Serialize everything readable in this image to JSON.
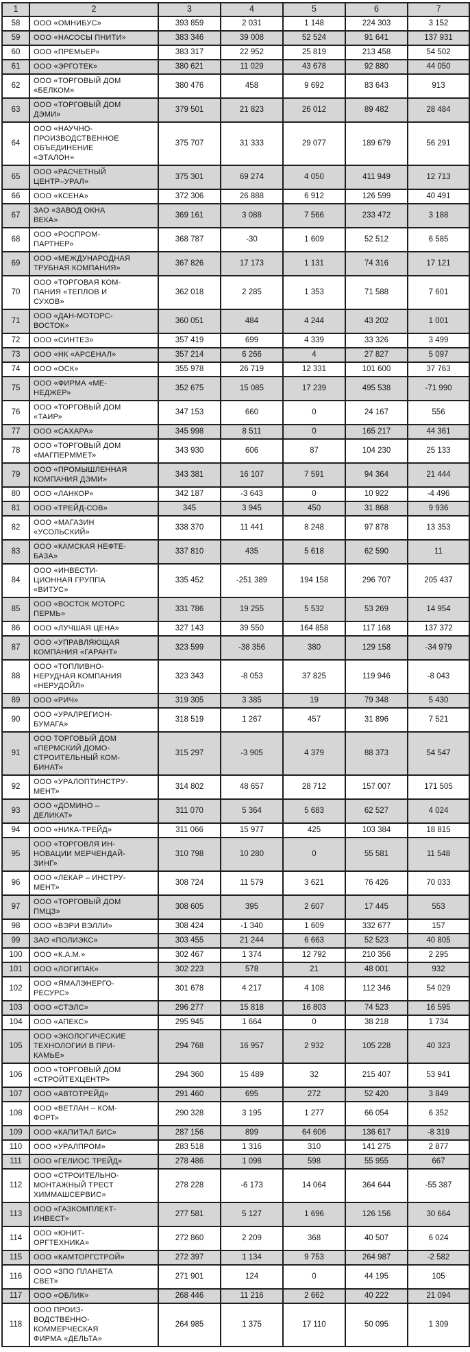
{
  "colors": {
    "row_shade": "#d6d6d6",
    "border": "#1e1e1e",
    "page_background": "#ffffff"
  },
  "table": {
    "columns": [
      "1",
      "2",
      "3",
      "4",
      "5",
      "6",
      "7"
    ],
    "rows": [
      {
        "num": "58",
        "name": "ООО «ОМНИБУС»",
        "values": [
          "393 859",
          "2 031",
          "1 148",
          "224 303",
          "3 152"
        ]
      },
      {
        "num": "59",
        "name": "ООО «НАСОСЫ ПНИТИ»",
        "values": [
          "383 346",
          "39 008",
          "52 524",
          "91 641",
          "137 931"
        ]
      },
      {
        "num": "60",
        "name": "ООО «ПРЕМЬЕР»",
        "values": [
          "383 317",
          "22 952",
          "25 819",
          "213 458",
          "54 502"
        ]
      },
      {
        "num": "61",
        "name": "ООО «ЭРГОТЕК»",
        "values": [
          "380 621",
          "11 029",
          "43 678",
          "92 880",
          "44 050"
        ]
      },
      {
        "num": "62",
        "name": "ООО «ТОРГОВЫЙ ДОМ\n«БЕЛКОМ»",
        "values": [
          "380 476",
          "458",
          "9 692",
          "83 643",
          "913"
        ]
      },
      {
        "num": "63",
        "name": "ООО «ТОРГОВЫЙ ДОМ\nДЭМИ»",
        "values": [
          "379 501",
          "21 823",
          "26 012",
          "89 482",
          "28 484"
        ]
      },
      {
        "num": "64",
        "name": "ООО «НАУЧНО-\nПРОИЗВОДСТВЕННОЕ\nОБЪЕДИНЕНИЕ\n«ЭТАЛОН»",
        "values": [
          "375 707",
          "31 333",
          "29 077",
          "189 679",
          "56 291"
        ]
      },
      {
        "num": "65",
        "name": "ООО «РАСЧЕТНЫЙ\nЦЕНТР–УРАЛ»",
        "values": [
          "375 301",
          "69 274",
          "4 050",
          "411 949",
          "12 713"
        ]
      },
      {
        "num": "66",
        "name": "ООО «КСЕНА»",
        "values": [
          "372 306",
          "26 888",
          "6 912",
          "126 599",
          "40 491"
        ]
      },
      {
        "num": "67",
        "name": "ЗАО «ЗАВОД ОКНА\nВЕКА»",
        "values": [
          "369 161",
          "3 088",
          "7 566",
          "233 472",
          "3 188"
        ]
      },
      {
        "num": "68",
        "name": "ООО «РОСПРОМ-\nПАРТНЕР»",
        "values": [
          "368 787",
          "-30",
          "1 609",
          "52 512",
          "6 585"
        ]
      },
      {
        "num": "69",
        "name": "ООО «МЕЖДУНАРОДНАЯ\nТРУБНАЯ КОМПАНИЯ»",
        "values": [
          "367 826",
          "17 173",
          "1 131",
          "74 316",
          "17 121"
        ]
      },
      {
        "num": "70",
        "name": "ООО «ТОРГОВАЯ КОМ-\nПАНИЯ «ТЕПЛОВ И\nСУХОВ»",
        "values": [
          "362 018",
          "2 285",
          "1 353",
          "71 588",
          "7 601"
        ]
      },
      {
        "num": "71",
        "name": "ООО «ДАН-МОТОРС-\nВОСТОК»",
        "values": [
          "360 051",
          "484",
          "4 244",
          "43 202",
          "1 001"
        ]
      },
      {
        "num": "72",
        "name": "ООО «СИНТЕЗ»",
        "values": [
          "357 419",
          "699",
          "4 339",
          "33 326",
          "3 499"
        ]
      },
      {
        "num": "73",
        "name": "ООО «НК «АРСЕНАЛ»",
        "values": [
          "357 214",
          "6 266",
          "4",
          "27 827",
          "5 097"
        ]
      },
      {
        "num": "74",
        "name": "ООО «ОСК»",
        "values": [
          "355 978",
          "26 719",
          "12 331",
          "101 600",
          "37 763"
        ]
      },
      {
        "num": "75",
        "name": "ООО «ФИРМА «МЕ-\nНЕДЖЕР»",
        "values": [
          "352 675",
          "15 085",
          "17 239",
          "495 538",
          "-71 990"
        ]
      },
      {
        "num": "76",
        "name": "ООО «ТОРГОВЫЙ ДОМ\n«ТАИР»",
        "values": [
          "347 153",
          "660",
          "0",
          "24 167",
          "556"
        ]
      },
      {
        "num": "77",
        "name": "ООО «САХАРА»",
        "values": [
          "345 998",
          "8 511",
          "0",
          "165 217",
          "44 361"
        ]
      },
      {
        "num": "78",
        "name": "ООО «ТОРГОВЫЙ ДОМ\n«МАГПЕРММЕТ»",
        "values": [
          "343 930",
          "606",
          "87",
          "104 230",
          "25 133"
        ]
      },
      {
        "num": "79",
        "name": "ООО «ПРОМЫШЛЕННАЯ\nКОМПАНИЯ ДЭМИ»",
        "values": [
          "343 381",
          "16 107",
          "7 591",
          "94 364",
          "21 444"
        ]
      },
      {
        "num": "80",
        "name": "ООО «ЛАНКОР»",
        "values": [
          "342 187",
          "-3 643",
          "0",
          "10 922",
          "-4 496"
        ]
      },
      {
        "num": "81",
        "name": "ООО «ТРЕЙД-СОВ»",
        "values": [
          "345",
          "3 945",
          "450",
          "31 868",
          "9 936"
        ]
      },
      {
        "num": "82",
        "name": "ООО «МАГАЗИН\n«УСОЛЬСКИЙ»",
        "values": [
          "338 370",
          "11 441",
          "8 248",
          "97 878",
          "13 353"
        ]
      },
      {
        "num": "83",
        "name": "ООО «КАМСКАЯ НЕФТЕ-\nБАЗА»",
        "values": [
          "337 810",
          "435",
          "5 618",
          "62 590",
          "11"
        ]
      },
      {
        "num": "84",
        "name": "ООО «ИНВЕСТИ-\nЦИОННАЯ ГРУППА\n«ВИТУС»",
        "values": [
          "335 452",
          "-251 389",
          "194 158",
          "296 707",
          "205 437"
        ]
      },
      {
        "num": "85",
        "name": "ООО «ВОСТОК МОТОРС\nПЕРМЬ»",
        "values": [
          "331 786",
          "19 255",
          "5 532",
          "53 269",
          "14 954"
        ]
      },
      {
        "num": "86",
        "name": "ООО «ЛУЧШАЯ ЦЕНА»",
        "values": [
          "327 143",
          "39 550",
          "164 858",
          "117 168",
          "137 372"
        ]
      },
      {
        "num": "87",
        "name": "ООО «УПРАВЛЯЮЩАЯ\nКОМПАНИЯ «ГАРАНТ»",
        "values": [
          "323 599",
          "-38 356",
          "380",
          "129 158",
          "-34 979"
        ]
      },
      {
        "num": "88",
        "name": "ООО «ТОПЛИВНО-\nНЕРУДНАЯ КОМПАНИЯ\n«НЕРУДОЙЛ»",
        "values": [
          "323 343",
          "-8 053",
          "37 825",
          "119 946",
          "-8 043"
        ]
      },
      {
        "num": "89",
        "name": "ООО «РИЧ»",
        "values": [
          "319 305",
          "3 385",
          "19",
          "79 348",
          "5 430"
        ]
      },
      {
        "num": "90",
        "name": "ООО «УРАЛРЕГИОН-\nБУМАГА»",
        "values": [
          "318 519",
          "1 267",
          "457",
          "31 896",
          "7 521"
        ]
      },
      {
        "num": "91",
        "name": "ООО ТОРГОВЫЙ ДОМ\n«ПЕРМСКИЙ ДОМО-\nСТРОИТЕЛЬНЫЙ КОМ-\nБИНАТ»",
        "values": [
          "315 297",
          "-3 905",
          "4 379",
          "88 373",
          "54 547"
        ]
      },
      {
        "num": "92",
        "name": "ООО «УРАЛОПТИНСТРУ-\nМЕНТ»",
        "values": [
          "314 802",
          "48 657",
          "28 712",
          "157 007",
          "171 505"
        ]
      },
      {
        "num": "93",
        "name": "ООО «ДОМИНО –\nДЕЛИКАТ»",
        "values": [
          "311 070",
          "5 364",
          "5 683",
          "62 527",
          "4 024"
        ]
      },
      {
        "num": "94",
        "name": "ООО «НИКА-ТРЕЙД»",
        "values": [
          "311 066",
          "15 977",
          "425",
          "103 384",
          "18 815"
        ]
      },
      {
        "num": "95",
        "name": "ООО «ТОРГОВЛЯ ИН-\nНОВАЦИИ МЕРЧЕНДАЙ-\nЗИНГ»",
        "values": [
          "310 798",
          "10 280",
          "0",
          "55 581",
          "11 548"
        ]
      },
      {
        "num": "96",
        "name": "ООО «ЛЕКАР – ИНСТРУ-\nМЕНТ»",
        "values": [
          "308 724",
          "11 579",
          "3 621",
          "76 426",
          "70 033"
        ]
      },
      {
        "num": "97",
        "name": "ООО «ТОРГОВЫЙ ДОМ\nПМЦЗ»",
        "values": [
          "308 605",
          "395",
          "2 607",
          "17 445",
          "553"
        ]
      },
      {
        "num": "98",
        "name": "ООО «ВЭРИ ВЭЛЛИ»",
        "values": [
          "308 424",
          "-1 340",
          "1 609",
          "332 677",
          "157"
        ]
      },
      {
        "num": "99",
        "name": "ЗАО «ПОЛИЭКС»",
        "values": [
          "303 455",
          "21 244",
          "6 663",
          "52 523",
          "40 805"
        ]
      },
      {
        "num": "100",
        "name": "ООО «К.А.М.»",
        "values": [
          "302 467",
          "1 374",
          "12 792",
          "210 356",
          "2 295"
        ]
      },
      {
        "num": "101",
        "name": "ООО «ЛОГИПАК»",
        "values": [
          "302 223",
          "578",
          "21",
          "48 001",
          "932"
        ]
      },
      {
        "num": "102",
        "name": "ООО «ЯМАЛЭНЕРГО-\nРЕСУРС»",
        "values": [
          "301 678",
          "4 217",
          "4 108",
          "112 346",
          "54 029"
        ]
      },
      {
        "num": "103",
        "name": "ООО «СТЭЛС»",
        "values": [
          "296 277",
          "15 818",
          "16 803",
          "74 523",
          "16 595"
        ]
      },
      {
        "num": "104",
        "name": "ООО «АПЕКС»",
        "values": [
          "295 945",
          "1 664",
          "0",
          "38 218",
          "1 734"
        ]
      },
      {
        "num": "105",
        "name": "ООО «ЭКОЛОГИЧЕСКИЕ\nТЕХНОЛОГИИ В ПРИ-\nКАМЬЕ»",
        "values": [
          "294 768",
          "16 957",
          "2 932",
          "105 228",
          "40 323"
        ]
      },
      {
        "num": "106",
        "name": "ООО «ТОРГОВЫЙ ДОМ\n«СТРОЙТЕХЦЕНТР»",
        "values": [
          "294 360",
          "15 489",
          "32",
          "215 407",
          "53 941"
        ]
      },
      {
        "num": "107",
        "name": "ООО «АВТОТРЕЙД»",
        "values": [
          "291 460",
          "695",
          "272",
          "52 420",
          "3 849"
        ]
      },
      {
        "num": "108",
        "name": "ООО «ВЕТЛАН – КОМ-\nФОРТ»",
        "values": [
          "290 328",
          "3 195",
          "1 277",
          "66 054",
          "6 352"
        ]
      },
      {
        "num": "109",
        "name": "ООО «КАПИТАЛ БИС»",
        "values": [
          "287 156",
          "899",
          "64 606",
          "136 617",
          "-8 319"
        ]
      },
      {
        "num": "110",
        "name": "ООО «УРАЛПРОМ»",
        "values": [
          "283 518",
          "1 316",
          "310",
          "141 275",
          "2 877"
        ]
      },
      {
        "num": "111",
        "name": "ООО «ГЕЛИОС ТРЕЙД»",
        "values": [
          "278 486",
          "1 098",
          "598",
          "55 955",
          "667"
        ]
      },
      {
        "num": "112",
        "name": "ООО «СТРОИТЕЛЬНО-\nМОНТАЖНЫЙ ТРЕСТ\nХИММАШСЕРВИС»",
        "values": [
          "278 228",
          "-6 173",
          "14 064",
          "364 644",
          "-55 387"
        ]
      },
      {
        "num": "113",
        "name": "ООО «ГАЗКОМПЛЕКТ-\nИНВЕСТ»",
        "values": [
          "277 581",
          "5 127",
          "1 696",
          "126 156",
          "30 664"
        ]
      },
      {
        "num": "114",
        "name": "ООО «ЮНИТ-\nОРГТЕХНИКА»",
        "values": [
          "272 860",
          "2 209",
          "368",
          "40 507",
          "6 024"
        ]
      },
      {
        "num": "115",
        "name": "ООО «КАМТОРГСТРОЙ»",
        "values": [
          "272 397",
          "1 134",
          "9 753",
          "264 987",
          "-2 582"
        ]
      },
      {
        "num": "116",
        "name": "ООО «ЗПО ПЛАНЕТА\nСВЕТ»",
        "values": [
          "271 901",
          "124",
          "0",
          "44 195",
          "105"
        ]
      },
      {
        "num": "117",
        "name": "ООО «ОБЛИК»",
        "values": [
          "268 446",
          "11 216",
          "2 662",
          "40 222",
          "21 094"
        ]
      },
      {
        "num": "118",
        "name": "ООО ПРОИЗ-\nВОДСТВЕННО-\nКОММЕРЧЕСКАЯ\nФИРМА «ДЕЛЬТА»",
        "values": [
          "264 985",
          "1 375",
          "17 110",
          "50 095",
          "1 309"
        ]
      }
    ]
  }
}
